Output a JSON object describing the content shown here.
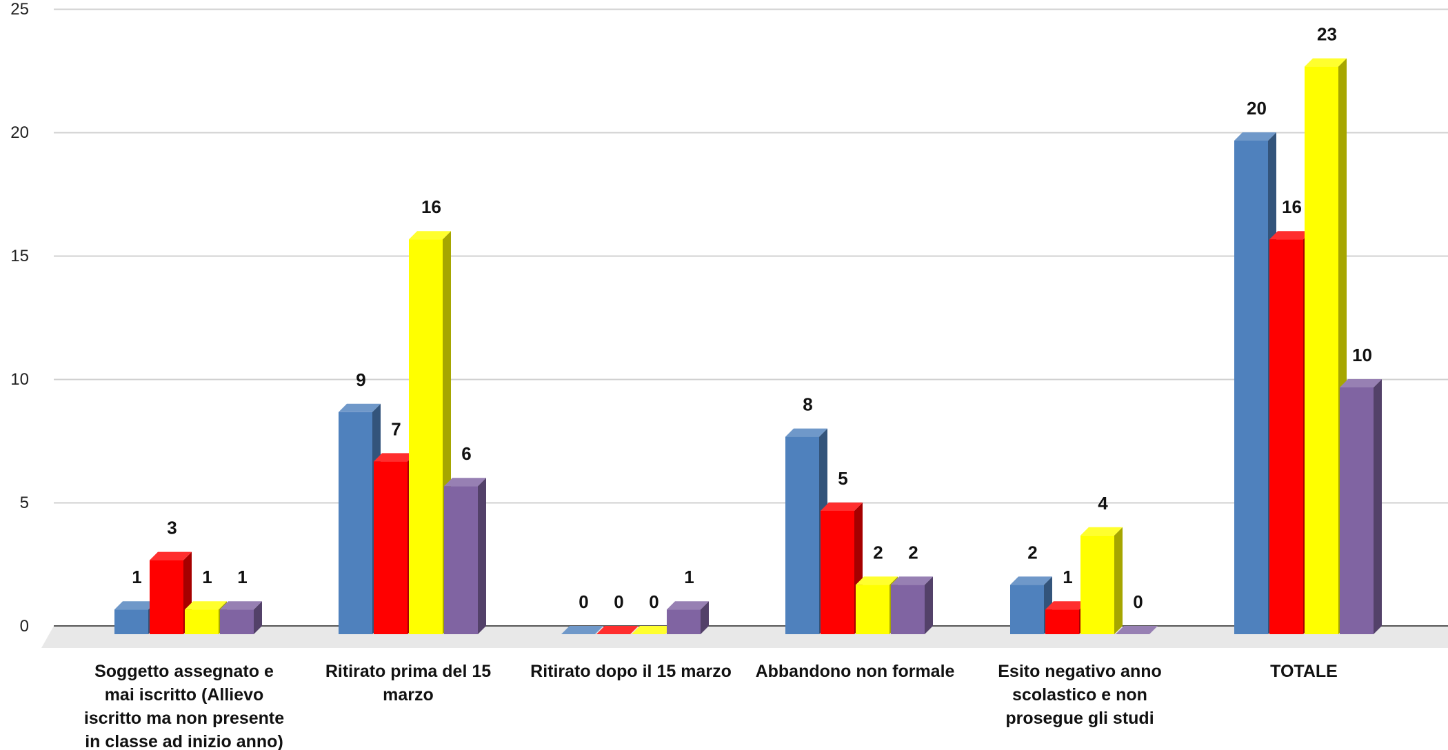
{
  "chart_data": {
    "type": "bar",
    "style": "3d-clustered",
    "categories": [
      [
        "Soggetto assegnato e",
        "mai iscritto (Allievo",
        "iscritto ma non presente",
        "in classe ad inizio anno)"
      ],
      [
        "Ritirato prima del 15",
        "marzo"
      ],
      [
        "Ritirato dopo il 15 marzo"
      ],
      [
        "Abbandono non formale"
      ],
      [
        "Esito negativo anno",
        "scolastico e non",
        "prosegue gli studi"
      ],
      [
        "TOTALE"
      ]
    ],
    "series": [
      {
        "color": "#4F81BD",
        "values": [
          1,
          9,
          0,
          8,
          2,
          20
        ]
      },
      {
        "color": "#FF0000",
        "values": [
          3,
          7,
          0,
          5,
          1,
          16
        ]
      },
      {
        "color": "#FFFF00",
        "values": [
          1,
          16,
          0,
          2,
          4,
          23
        ]
      },
      {
        "color": "#8064A2",
        "values": [
          1,
          6,
          1,
          2,
          0,
          10
        ]
      }
    ],
    "ylim": [
      0,
      25
    ],
    "yticks": [
      0,
      5,
      10,
      15,
      20,
      25
    ],
    "grid": true,
    "legend": "none",
    "xlabel": "",
    "ylabel": ""
  }
}
